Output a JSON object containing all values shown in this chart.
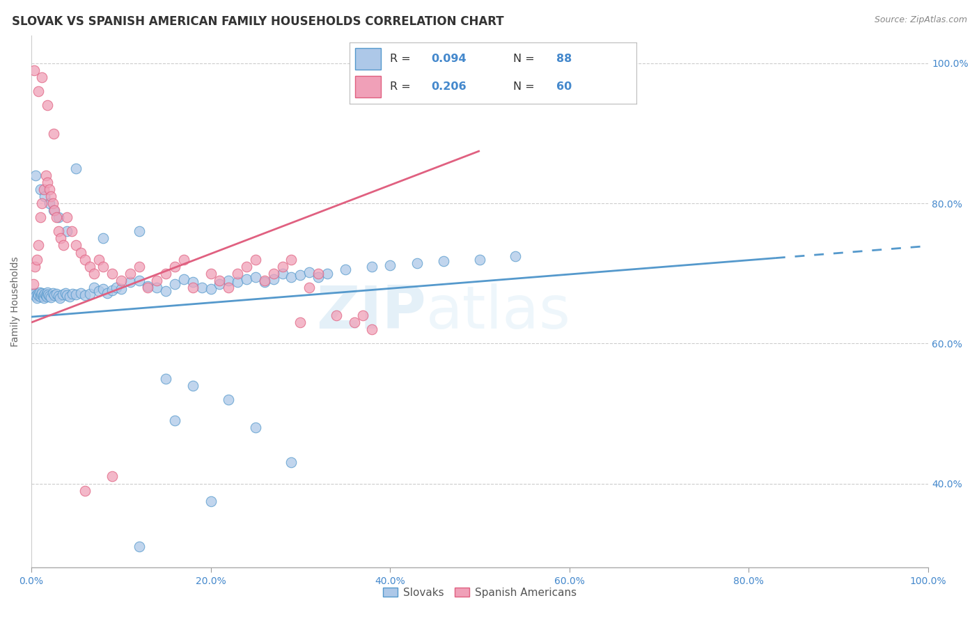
{
  "title": "SLOVAK VS SPANISH AMERICAN FAMILY HOUSEHOLDS CORRELATION CHART",
  "source": "Source: ZipAtlas.com",
  "ylabel": "Family Households",
  "watermark_zip": "ZIP",
  "watermark_atlas": "atlas",
  "xlim": [
    0.0,
    1.0
  ],
  "ylim": [
    0.28,
    1.04
  ],
  "xticks": [
    0.0,
    0.2,
    0.4,
    0.6,
    0.8,
    1.0
  ],
  "yticks": [
    0.4,
    0.6,
    0.8,
    1.0
  ],
  "xticklabels": [
    "0.0%",
    "20.0%",
    "40.0%",
    "60.0%",
    "80.0%",
    "100.0%"
  ],
  "yticklabels": [
    "40.0%",
    "60.0%",
    "80.0%",
    "100.0%"
  ],
  "legend_r1": "0.094",
  "legend_n1": "88",
  "legend_r2": "0.206",
  "legend_n2": "60",
  "slovaks_color": "#adc8e8",
  "spanish_color": "#f0a0b8",
  "trendline1_color": "#5599cc",
  "trendline2_color": "#e06080",
  "background_color": "#ffffff",
  "grid_color": "#cccccc",
  "title_color": "#333333",
  "tick_color": "#4488cc",
  "source_color": "#888888",
  "title_fontsize": 12,
  "axis_label_fontsize": 10,
  "tick_fontsize": 10,
  "legend_fontsize": 12,
  "trendline1_x0": 0.0,
  "trendline1_y0": 0.638,
  "trendline1_x1": 0.83,
  "trendline1_y1": 0.722,
  "trendline1_dash_x0": 0.83,
  "trendline1_dash_x1": 1.0,
  "trendline2_x0": 0.0,
  "trendline2_y0": 0.63,
  "trendline2_x1": 0.5,
  "trendline2_y1": 0.875,
  "slovaks_x": [
    0.003,
    0.004,
    0.005,
    0.006,
    0.007,
    0.008,
    0.009,
    0.01,
    0.011,
    0.012,
    0.013,
    0.014,
    0.015,
    0.016,
    0.017,
    0.018,
    0.019,
    0.02,
    0.022,
    0.024,
    0.026,
    0.028,
    0.03,
    0.032,
    0.035,
    0.038,
    0.04,
    0.043,
    0.046,
    0.05,
    0.055,
    0.06,
    0.065,
    0.07,
    0.075,
    0.08,
    0.085,
    0.09,
    0.095,
    0.1,
    0.11,
    0.12,
    0.13,
    0.14,
    0.15,
    0.16,
    0.17,
    0.18,
    0.19,
    0.2,
    0.21,
    0.22,
    0.23,
    0.24,
    0.25,
    0.26,
    0.27,
    0.28,
    0.29,
    0.3,
    0.31,
    0.32,
    0.33,
    0.35,
    0.38,
    0.4,
    0.43,
    0.46,
    0.5,
    0.54,
    0.005,
    0.01,
    0.015,
    0.02,
    0.025,
    0.03,
    0.04,
    0.05,
    0.08,
    0.12,
    0.15,
    0.18,
    0.22,
    0.16,
    0.25,
    0.29,
    0.12,
    0.2
  ],
  "slovaks_y": [
    0.67,
    0.672,
    0.668,
    0.665,
    0.671,
    0.669,
    0.673,
    0.667,
    0.67,
    0.672,
    0.668,
    0.665,
    0.671,
    0.669,
    0.667,
    0.673,
    0.67,
    0.668,
    0.666,
    0.672,
    0.669,
    0.671,
    0.668,
    0.665,
    0.67,
    0.672,
    0.669,
    0.667,
    0.671,
    0.67,
    0.672,
    0.669,
    0.671,
    0.68,
    0.675,
    0.678,
    0.672,
    0.676,
    0.68,
    0.678,
    0.688,
    0.69,
    0.682,
    0.68,
    0.675,
    0.685,
    0.692,
    0.688,
    0.68,
    0.678,
    0.685,
    0.69,
    0.688,
    0.692,
    0.695,
    0.688,
    0.692,
    0.7,
    0.695,
    0.698,
    0.702,
    0.695,
    0.7,
    0.706,
    0.71,
    0.712,
    0.715,
    0.718,
    0.72,
    0.725,
    0.84,
    0.82,
    0.81,
    0.8,
    0.79,
    0.78,
    0.76,
    0.85,
    0.75,
    0.76,
    0.55,
    0.54,
    0.52,
    0.49,
    0.48,
    0.43,
    0.31,
    0.375
  ],
  "spanish_x": [
    0.002,
    0.004,
    0.006,
    0.008,
    0.01,
    0.012,
    0.014,
    0.016,
    0.018,
    0.02,
    0.022,
    0.024,
    0.026,
    0.028,
    0.03,
    0.033,
    0.036,
    0.04,
    0.045,
    0.05,
    0.055,
    0.06,
    0.065,
    0.07,
    0.075,
    0.08,
    0.09,
    0.1,
    0.11,
    0.12,
    0.13,
    0.14,
    0.15,
    0.16,
    0.17,
    0.18,
    0.2,
    0.21,
    0.22,
    0.23,
    0.24,
    0.25,
    0.26,
    0.27,
    0.28,
    0.29,
    0.3,
    0.31,
    0.32,
    0.34,
    0.36,
    0.37,
    0.38,
    0.003,
    0.008,
    0.012,
    0.018,
    0.025,
    0.06,
    0.09
  ],
  "spanish_y": [
    0.685,
    0.71,
    0.72,
    0.74,
    0.78,
    0.8,
    0.82,
    0.84,
    0.83,
    0.82,
    0.81,
    0.8,
    0.79,
    0.78,
    0.76,
    0.75,
    0.74,
    0.78,
    0.76,
    0.74,
    0.73,
    0.72,
    0.71,
    0.7,
    0.72,
    0.71,
    0.7,
    0.69,
    0.7,
    0.71,
    0.68,
    0.69,
    0.7,
    0.71,
    0.72,
    0.68,
    0.7,
    0.69,
    0.68,
    0.7,
    0.71,
    0.72,
    0.69,
    0.7,
    0.71,
    0.72,
    0.63,
    0.68,
    0.7,
    0.64,
    0.63,
    0.64,
    0.62,
    0.99,
    0.96,
    0.98,
    0.94,
    0.9,
    0.39,
    0.41
  ]
}
